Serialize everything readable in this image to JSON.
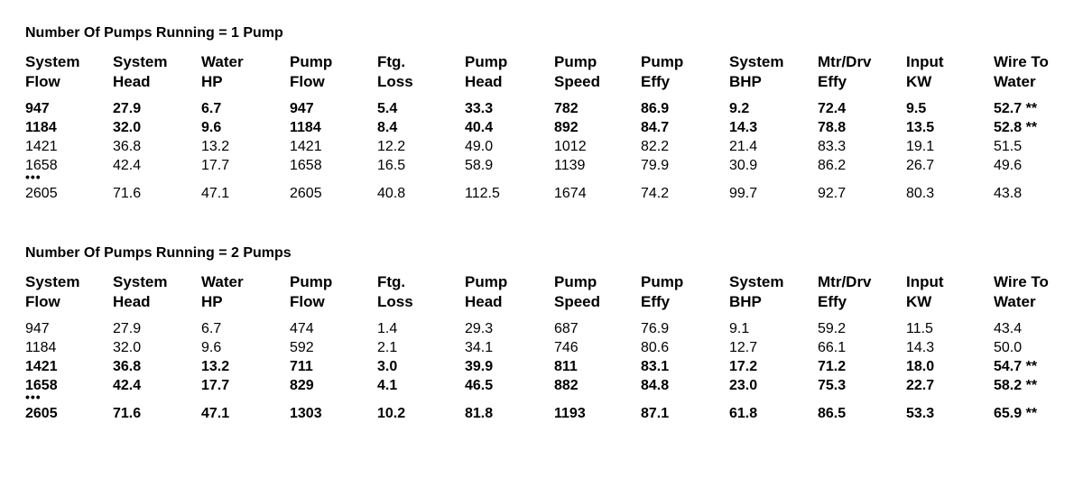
{
  "headers": [
    "System\nFlow",
    "System\nHead",
    "Water\nHP",
    "Pump\nFlow",
    "Ftg.\nLoss",
    "Pump\nHead",
    "Pump\nSpeed",
    "Pump\nEffy",
    "System\nBHP",
    "Mtr/Drv\nEffy",
    "Input\nKW",
    "Wire To\nWater"
  ],
  "ellipsis": "•••",
  "sections": [
    {
      "title": "Number Of Pumps Running = 1 Pump",
      "rows": [
        {
          "bold": true,
          "cells": [
            "947",
            "27.9",
            "6.7",
            "947",
            "5.4",
            "33.3",
            "782",
            "86.9",
            "9.2",
            "72.4",
            "9.5",
            "52.7 **"
          ]
        },
        {
          "bold": true,
          "cells": [
            "1184",
            "32.0",
            "9.6",
            "1184",
            "8.4",
            "40.4",
            "892",
            "84.7",
            "14.3",
            "78.8",
            "13.5",
            "52.8 **"
          ]
        },
        {
          "bold": false,
          "cells": [
            "1421",
            "36.8",
            "13.2",
            "1421",
            "12.2",
            "49.0",
            "1012",
            "82.2",
            "21.4",
            "83.3",
            "19.1",
            "51.5"
          ]
        },
        {
          "bold": false,
          "cells": [
            "1658",
            "42.4",
            "17.7",
            "1658",
            "16.5",
            "58.9",
            "1139",
            "79.9",
            "30.9",
            "86.2",
            "26.7",
            "49.6"
          ]
        },
        {
          "bold": false,
          "cells": [
            "2605",
            "71.6",
            "47.1",
            "2605",
            "40.8",
            "112.5",
            "1674",
            "74.2",
            "99.7",
            "92.7",
            "80.3",
            "43.8"
          ]
        }
      ]
    },
    {
      "title": "Number Of Pumps Running = 2 Pumps",
      "rows": [
        {
          "bold": false,
          "cells": [
            "947",
            "27.9",
            "6.7",
            "474",
            "1.4",
            "29.3",
            "687",
            "76.9",
            "9.1",
            "59.2",
            "11.5",
            "43.4"
          ]
        },
        {
          "bold": false,
          "cells": [
            "1184",
            "32.0",
            "9.6",
            "592",
            "2.1",
            "34.1",
            "746",
            "80.6",
            "12.7",
            "66.1",
            "14.3",
            "50.0"
          ]
        },
        {
          "bold": true,
          "cells": [
            "1421",
            "36.8",
            "13.2",
            "711",
            "3.0",
            "39.9",
            "811",
            "83.1",
            "17.2",
            "71.2",
            "18.0",
            "54.7 **"
          ]
        },
        {
          "bold": true,
          "cells": [
            "1658",
            "42.4",
            "17.7",
            "829",
            "4.1",
            "46.5",
            "882",
            "84.8",
            "23.0",
            "75.3",
            "22.7",
            "58.2 **"
          ]
        },
        {
          "bold": true,
          "cells": [
            "2605",
            "71.6",
            "47.1",
            "1303",
            "10.2",
            "81.8",
            "1193",
            "87.1",
            "61.8",
            "86.5",
            "53.3",
            "65.9 **"
          ]
        }
      ]
    }
  ]
}
